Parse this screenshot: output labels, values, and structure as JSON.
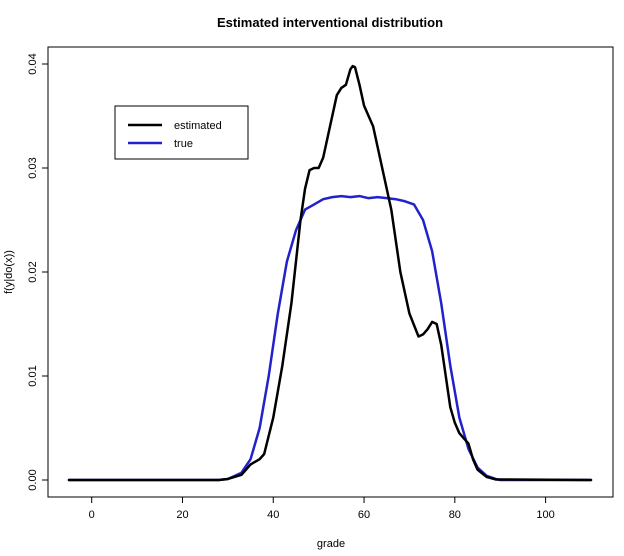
{
  "chart_data": {
    "type": "line",
    "title": "Estimated interventional distribution",
    "xlabel": "grade",
    "ylabel": "f(y|do(x))",
    "xlim": [
      -5,
      110
    ],
    "ylim": [
      0,
      0.04
    ],
    "xticks": [
      0,
      20,
      40,
      60,
      80,
      100
    ],
    "yticks": [
      0.0,
      0.01,
      0.02,
      0.03,
      0.04
    ],
    "xtick_labels": [
      "0",
      "20",
      "40",
      "60",
      "80",
      "100"
    ],
    "ytick_labels": [
      "0.00",
      "0.01",
      "0.02",
      "0.03",
      "0.04"
    ],
    "grid": false,
    "legend_position": "top-left",
    "series": [
      {
        "name": "estimated",
        "color": "#000000",
        "points": [
          [
            -5,
            0
          ],
          [
            28,
            0
          ],
          [
            30,
            0.0001
          ],
          [
            33,
            0.0005
          ],
          [
            35,
            0.0015
          ],
          [
            37,
            0.002
          ],
          [
            38,
            0.0025
          ],
          [
            40,
            0.006
          ],
          [
            42,
            0.011
          ],
          [
            44,
            0.017
          ],
          [
            46,
            0.025
          ],
          [
            47,
            0.028
          ],
          [
            48,
            0.0298
          ],
          [
            49,
            0.03
          ],
          [
            50,
            0.03
          ],
          [
            51,
            0.031
          ],
          [
            52,
            0.033
          ],
          [
            53,
            0.035
          ],
          [
            54,
            0.037
          ],
          [
            55,
            0.0377
          ],
          [
            56,
            0.038
          ],
          [
            57,
            0.0395
          ],
          [
            57.5,
            0.0398
          ],
          [
            58,
            0.0397
          ],
          [
            59,
            0.038
          ],
          [
            60,
            0.036
          ],
          [
            62,
            0.034
          ],
          [
            64,
            0.03
          ],
          [
            66,
            0.026
          ],
          [
            68,
            0.02
          ],
          [
            70,
            0.016
          ],
          [
            72,
            0.0138
          ],
          [
            73,
            0.014
          ],
          [
            74,
            0.0145
          ],
          [
            75,
            0.0152
          ],
          [
            76,
            0.015
          ],
          [
            77,
            0.013
          ],
          [
            78,
            0.01
          ],
          [
            79,
            0.007
          ],
          [
            80,
            0.0055
          ],
          [
            81,
            0.0045
          ],
          [
            82,
            0.004
          ],
          [
            83,
            0.0035
          ],
          [
            84,
            0.002
          ],
          [
            85,
            0.001
          ],
          [
            87,
            0.0003
          ],
          [
            89,
            5e-05
          ],
          [
            110,
            0
          ]
        ]
      },
      {
        "name": "true",
        "color": "#2222cc",
        "points": [
          [
            -5,
            0
          ],
          [
            28,
            0
          ],
          [
            30,
            0.0001
          ],
          [
            33,
            0.0007
          ],
          [
            35,
            0.002
          ],
          [
            37,
            0.005
          ],
          [
            39,
            0.01
          ],
          [
            41,
            0.016
          ],
          [
            43,
            0.021
          ],
          [
            45,
            0.024
          ],
          [
            47,
            0.026
          ],
          [
            49,
            0.0265
          ],
          [
            51,
            0.027
          ],
          [
            53,
            0.0272
          ],
          [
            55,
            0.0273
          ],
          [
            57,
            0.0272
          ],
          [
            59,
            0.0273
          ],
          [
            61,
            0.0271
          ],
          [
            63,
            0.0272
          ],
          [
            65,
            0.0271
          ],
          [
            67,
            0.027
          ],
          [
            69,
            0.0268
          ],
          [
            71,
            0.0265
          ],
          [
            73,
            0.025
          ],
          [
            75,
            0.022
          ],
          [
            77,
            0.017
          ],
          [
            79,
            0.011
          ],
          [
            81,
            0.006
          ],
          [
            83,
            0.003
          ],
          [
            85,
            0.0012
          ],
          [
            87,
            0.0004
          ],
          [
            89,
            0.0001
          ],
          [
            90,
            0
          ],
          [
            110,
            0
          ]
        ]
      }
    ]
  }
}
